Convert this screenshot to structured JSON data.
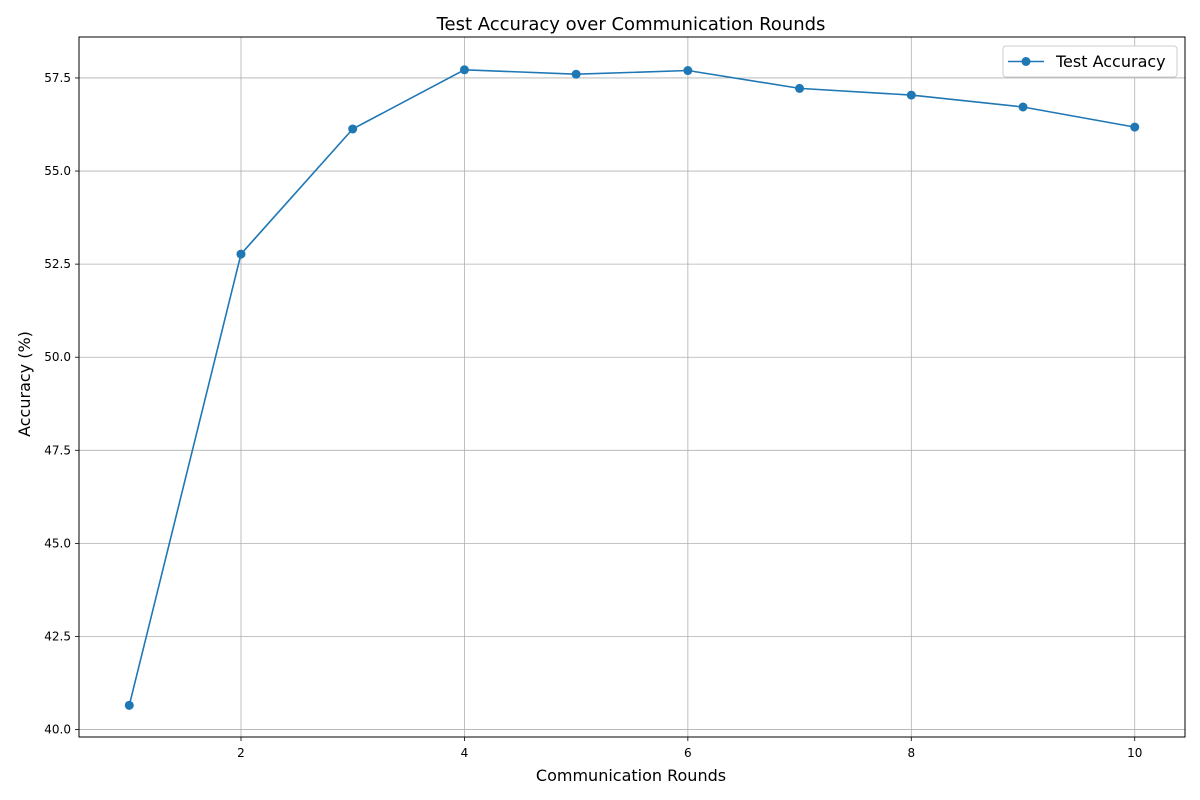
{
  "chart_data": {
    "type": "line",
    "title": "Test Accuracy over Communication Rounds",
    "xlabel": "Communication Rounds",
    "ylabel": "Accuracy (%)",
    "x": [
      1,
      2,
      3,
      4,
      5,
      6,
      7,
      8,
      9,
      10
    ],
    "series": [
      {
        "name": "Test Accuracy",
        "values": [
          40.65,
          52.77,
          56.13,
          57.72,
          57.6,
          57.7,
          57.22,
          57.04,
          56.72,
          56.18
        ],
        "color": "#1f77b4",
        "marker": "circle"
      }
    ],
    "xlim": [
      0.55,
      10.45
    ],
    "ylim": [
      39.8,
      58.6
    ],
    "xticks": [
      2,
      4,
      6,
      8,
      10
    ],
    "xtick_labels": [
      "2",
      "4",
      "6",
      "8",
      "10"
    ],
    "yticks": [
      40.0,
      42.5,
      45.0,
      47.5,
      50.0,
      52.5,
      55.0,
      57.5
    ],
    "ytick_labels": [
      "40.0",
      "42.5",
      "45.0",
      "47.5",
      "50.0",
      "52.5",
      "55.0",
      "57.5"
    ],
    "grid": true,
    "legend_position": "top-right"
  }
}
